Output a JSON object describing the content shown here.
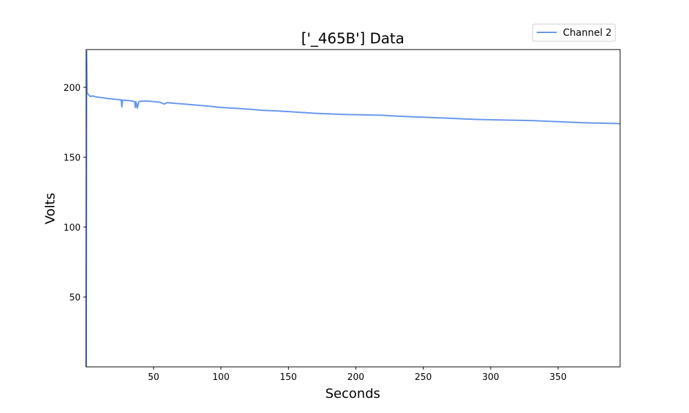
{
  "chart_data": {
    "type": "line",
    "title": "['_465B'] Data",
    "xlabel": "Seconds",
    "ylabel": "Volts",
    "xlim": [
      0,
      396
    ],
    "ylim": [
      0,
      227
    ],
    "xticks": [
      50,
      100,
      150,
      200,
      250,
      300,
      350
    ],
    "yticks": [
      50,
      100,
      150,
      200
    ],
    "grid": false,
    "legend_position": "top-right",
    "series": [
      {
        "name": "Channel 2",
        "color": "#6495ED",
        "x": [
          0,
          0.4,
          0.8,
          1.5,
          3,
          5,
          8,
          12,
          16,
          20,
          24,
          26,
          26.5,
          27,
          30,
          34,
          36,
          36.5,
          37,
          38,
          39,
          40,
          45,
          50,
          55,
          58,
          60,
          65,
          70,
          80,
          90,
          100,
          110,
          120,
          130,
          140,
          150,
          160,
          170,
          180,
          190,
          200,
          210,
          220,
          230,
          240,
          250,
          260,
          270,
          280,
          290,
          300,
          310,
          320,
          330,
          340,
          350,
          360,
          370,
          380,
          390,
          396
        ],
        "y": [
          0,
          226,
          196,
          195,
          193.5,
          193.8,
          193,
          192.6,
          192,
          191.6,
          191.2,
          191,
          186,
          190.8,
          190.6,
          190.2,
          189.8,
          185.5,
          189.6,
          185.2,
          189.5,
          190,
          190.2,
          189.8,
          189.2,
          188,
          189,
          188.6,
          188.2,
          187.4,
          186.6,
          185.6,
          185,
          184.4,
          183.6,
          183.2,
          182.6,
          182,
          181.4,
          181,
          180.6,
          180.4,
          180.2,
          180,
          179.4,
          179,
          178.6,
          178.2,
          177.8,
          177.4,
          177,
          176.8,
          176.6,
          176.4,
          176.2,
          175.8,
          175.4,
          175,
          174.6,
          174.4,
          174.2,
          174
        ]
      }
    ]
  }
}
